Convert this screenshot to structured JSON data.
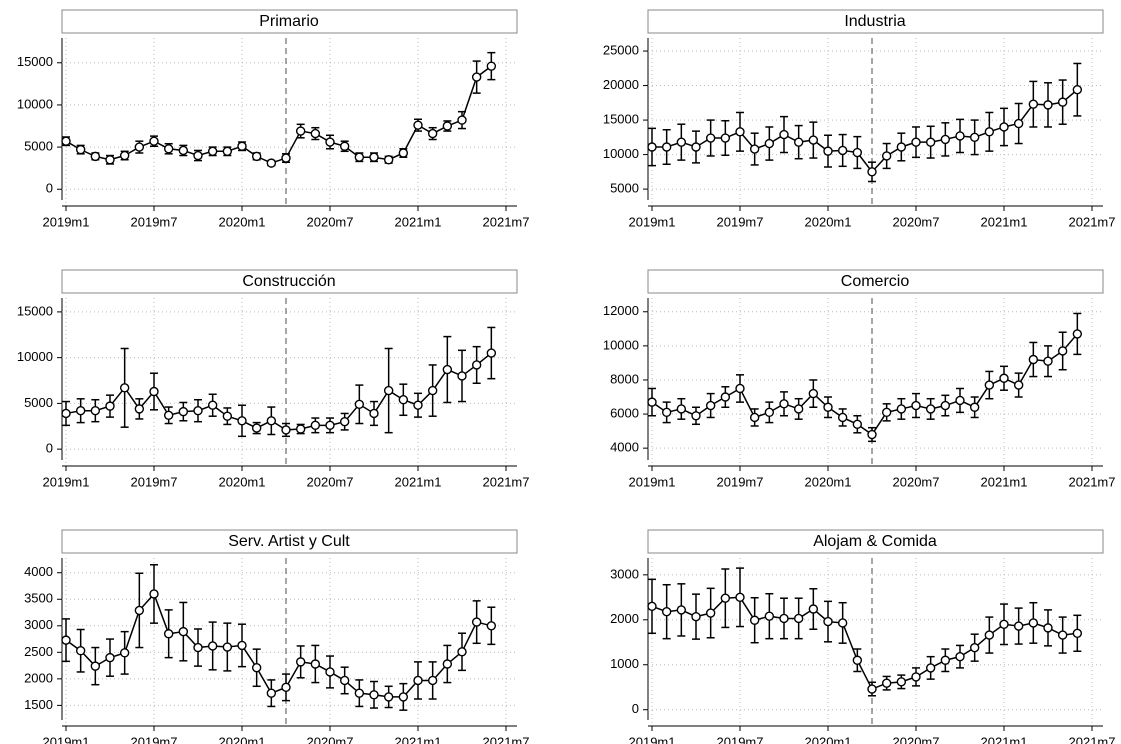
{
  "chart_data": [
    {
      "type": "line",
      "title": "Primario",
      "x": [
        708,
        709,
        710,
        711,
        712,
        713,
        714,
        715,
        716,
        717,
        718,
        719,
        720,
        721,
        722,
        723,
        724,
        725,
        726,
        727,
        728,
        729,
        730,
        731,
        732,
        733,
        734,
        735,
        736,
        737
      ],
      "values": [
        5700,
        4700,
        3900,
        3500,
        4000,
        5000,
        5700,
        4800,
        4600,
        4000,
        4500,
        4500,
        5100,
        3900,
        3100,
        3700,
        6900,
        6600,
        5600,
        5100,
        3800,
        3800,
        3500,
        4300,
        7600,
        6600,
        7500,
        8200,
        13300,
        14600
      ],
      "errors": [
        500,
        500,
        400,
        500,
        500,
        700,
        600,
        600,
        600,
        600,
        500,
        500,
        500,
        400,
        300,
        500,
        800,
        700,
        800,
        600,
        500,
        500,
        400,
        500,
        700,
        700,
        600,
        1000,
        1900,
        1600
      ],
      "xlim": [
        708,
        738
      ],
      "xticks": [
        {
          "value": 708,
          "label": "2019m1"
        },
        {
          "value": 714,
          "label": "2019m7"
        },
        {
          "value": 720,
          "label": "2020m1"
        },
        {
          "value": 726,
          "label": "2020m7"
        },
        {
          "value": 732,
          "label": "2021m1"
        },
        {
          "value": 738,
          "label": "2021m7"
        }
      ],
      "ylim": [
        -800,
        17700
      ],
      "yticks": [
        0,
        5000,
        10000,
        15000
      ],
      "vline": 723,
      "grid": true,
      "color": "#000000"
    },
    {
      "type": "line",
      "title": "Industria",
      "x": [
        708,
        709,
        710,
        711,
        712,
        713,
        714,
        715,
        716,
        717,
        718,
        719,
        720,
        721,
        722,
        723,
        724,
        725,
        726,
        727,
        728,
        729,
        730,
        731,
        732,
        733,
        734,
        735,
        736,
        737
      ],
      "values": [
        11100,
        11100,
        11800,
        11100,
        12400,
        12400,
        13300,
        10800,
        11600,
        12900,
        11800,
        12100,
        10500,
        10600,
        10300,
        7500,
        9800,
        11100,
        11800,
        11800,
        12200,
        12700,
        12500,
        13300,
        14000,
        14500,
        17300,
        17200,
        17600,
        19400
      ],
      "errors": [
        2700,
        2500,
        2600,
        2300,
        2600,
        2500,
        2800,
        2300,
        2400,
        2600,
        2400,
        2600,
        2300,
        2300,
        2300,
        1400,
        1800,
        2000,
        2200,
        2300,
        2400,
        2400,
        2500,
        2800,
        2700,
        2900,
        3300,
        3200,
        3200,
        3800
      ],
      "xlim": [
        708,
        738
      ],
      "xticks": [
        {
          "value": 708,
          "label": "2019m1"
        },
        {
          "value": 714,
          "label": "2019m7"
        },
        {
          "value": 720,
          "label": "2020m1"
        },
        {
          "value": 726,
          "label": "2020m7"
        },
        {
          "value": 732,
          "label": "2021m1"
        },
        {
          "value": 738,
          "label": "2021m7"
        }
      ],
      "ylim": [
        4000,
        26600
      ],
      "yticks": [
        5000,
        10000,
        15000,
        20000,
        25000
      ],
      "vline": 723,
      "grid": true,
      "color": "#000000"
    },
    {
      "type": "line",
      "title": "Construcción",
      "x": [
        708,
        709,
        710,
        711,
        712,
        713,
        714,
        715,
        716,
        717,
        718,
        719,
        720,
        721,
        722,
        723,
        724,
        725,
        726,
        727,
        728,
        729,
        730,
        731,
        732,
        733,
        734,
        735,
        736,
        737
      ],
      "values": [
        3900,
        4200,
        4200,
        4700,
        6700,
        4400,
        6300,
        3700,
        4100,
        4200,
        4800,
        3600,
        3100,
        2300,
        3100,
        2100,
        2200,
        2600,
        2600,
        3000,
        4900,
        3900,
        6400,
        5400,
        4800,
        6400,
        8700,
        8000,
        9200,
        10500
      ],
      "errors": [
        1300,
        1300,
        1200,
        1200,
        4300,
        1100,
        2000,
        900,
        1000,
        1200,
        1200,
        900,
        1700,
        600,
        1500,
        700,
        500,
        800,
        800,
        900,
        2100,
        1300,
        4600,
        1700,
        1300,
        2800,
        3600,
        2800,
        2000,
        2800
      ],
      "xlim": [
        708,
        738
      ],
      "xticks": [
        {
          "value": 708,
          "label": "2019m1"
        },
        {
          "value": 714,
          "label": "2019m7"
        },
        {
          "value": 720,
          "label": "2020m1"
        },
        {
          "value": 726,
          "label": "2020m7"
        },
        {
          "value": 732,
          "label": "2021m1"
        },
        {
          "value": 738,
          "label": "2021m7"
        }
      ],
      "ylim": [
        -750,
        16300
      ],
      "yticks": [
        0,
        5000,
        10000,
        15000
      ],
      "vline": 723,
      "grid": true,
      "color": "#000000"
    },
    {
      "type": "line",
      "title": "Comercio",
      "x": [
        708,
        709,
        710,
        711,
        712,
        713,
        714,
        715,
        716,
        717,
        718,
        719,
        720,
        721,
        722,
        723,
        724,
        725,
        726,
        727,
        728,
        729,
        730,
        731,
        732,
        733,
        734,
        735,
        736,
        737
      ],
      "values": [
        6700,
        6100,
        6300,
        5900,
        6500,
        7000,
        7500,
        5800,
        6100,
        6600,
        6300,
        7200,
        6400,
        5800,
        5400,
        4800,
        6100,
        6300,
        6500,
        6300,
        6500,
        6800,
        6400,
        7700,
        8100,
        7700,
        9200,
        9100,
        9700,
        10700
      ],
      "errors": [
        800,
        600,
        600,
        500,
        700,
        600,
        800,
        500,
        600,
        700,
        600,
        800,
        600,
        500,
        500,
        400,
        500,
        600,
        700,
        600,
        600,
        700,
        600,
        800,
        700,
        700,
        1000,
        900,
        1100,
        1200
      ],
      "xlim": [
        708,
        738
      ],
      "xticks": [
        {
          "value": 708,
          "label": "2019m1"
        },
        {
          "value": 714,
          "label": "2019m7"
        },
        {
          "value": 720,
          "label": "2020m1"
        },
        {
          "value": 726,
          "label": "2020m7"
        },
        {
          "value": 732,
          "label": "2021m1"
        },
        {
          "value": 738,
          "label": "2021m7"
        }
      ],
      "ylim": [
        3540,
        12690
      ],
      "yticks": [
        4000,
        6000,
        8000,
        10000,
        12000
      ],
      "vline": 723,
      "grid": true,
      "color": "#000000"
    },
    {
      "type": "line",
      "title": "Serv. Artist y Cult",
      "x": [
        708,
        709,
        710,
        711,
        712,
        713,
        714,
        715,
        716,
        717,
        718,
        719,
        720,
        721,
        722,
        723,
        724,
        725,
        726,
        727,
        728,
        729,
        730,
        731,
        732,
        733,
        734,
        735,
        736,
        737
      ],
      "values": [
        2730,
        2530,
        2240,
        2400,
        2490,
        3290,
        3600,
        2850,
        2890,
        2590,
        2620,
        2600,
        2630,
        2210,
        1730,
        1840,
        2320,
        2280,
        2130,
        1970,
        1730,
        1700,
        1660,
        1660,
        1970,
        1970,
        2280,
        2510,
        3070,
        3000
      ],
      "errors": [
        400,
        400,
        350,
        350,
        400,
        700,
        550,
        450,
        550,
        350,
        450,
        450,
        400,
        350,
        250,
        250,
        300,
        350,
        300,
        250,
        250,
        250,
        200,
        250,
        350,
        350,
        350,
        350,
        400,
        350
      ],
      "xlim": [
        708,
        738
      ],
      "xticks": [
        {
          "value": 708,
          "label": "2019m1"
        },
        {
          "value": 714,
          "label": "2019m7"
        },
        {
          "value": 720,
          "label": "2020m1"
        },
        {
          "value": 726,
          "label": "2020m7"
        },
        {
          "value": 732,
          "label": "2021m1"
        },
        {
          "value": 738,
          "label": "2021m7"
        }
      ],
      "ylim": [
        1300,
        4240
      ],
      "yticks": [
        1500,
        2000,
        2500,
        3000,
        3500,
        4000
      ],
      "vline": 723,
      "grid": true,
      "color": "#000000"
    },
    {
      "type": "line",
      "title": "Alojam & Comida",
      "x": [
        708,
        709,
        710,
        711,
        712,
        713,
        714,
        715,
        716,
        717,
        718,
        719,
        720,
        721,
        722,
        723,
        724,
        725,
        726,
        727,
        728,
        729,
        730,
        731,
        732,
        733,
        734,
        735,
        736,
        737
      ],
      "values": [
        2300,
        2180,
        2220,
        2070,
        2150,
        2480,
        2500,
        1990,
        2080,
        2030,
        2030,
        2240,
        1960,
        1930,
        1100,
        460,
        590,
        620,
        730,
        930,
        1100,
        1180,
        1380,
        1660,
        1900,
        1860,
        1930,
        1820,
        1660,
        1700
      ],
      "errors": [
        600,
        600,
        580,
        500,
        550,
        650,
        650,
        500,
        500,
        450,
        450,
        450,
        450,
        450,
        250,
        150,
        150,
        150,
        200,
        250,
        250,
        250,
        300,
        400,
        450,
        400,
        450,
        400,
        400,
        400
      ],
      "xlim": [
        708,
        738
      ],
      "xticks": [
        {
          "value": 708,
          "label": "2019m1"
        },
        {
          "value": 714,
          "label": "2019m7"
        },
        {
          "value": 720,
          "label": "2020m1"
        },
        {
          "value": 726,
          "label": "2020m7"
        },
        {
          "value": 732,
          "label": "2021m1"
        },
        {
          "value": 738,
          "label": "2021m7"
        }
      ],
      "ylim": [
        -140,
        3330
      ],
      "yticks": [
        0,
        1000,
        2000,
        3000
      ],
      "vline": 723,
      "grid": true,
      "color": "#000000"
    }
  ]
}
